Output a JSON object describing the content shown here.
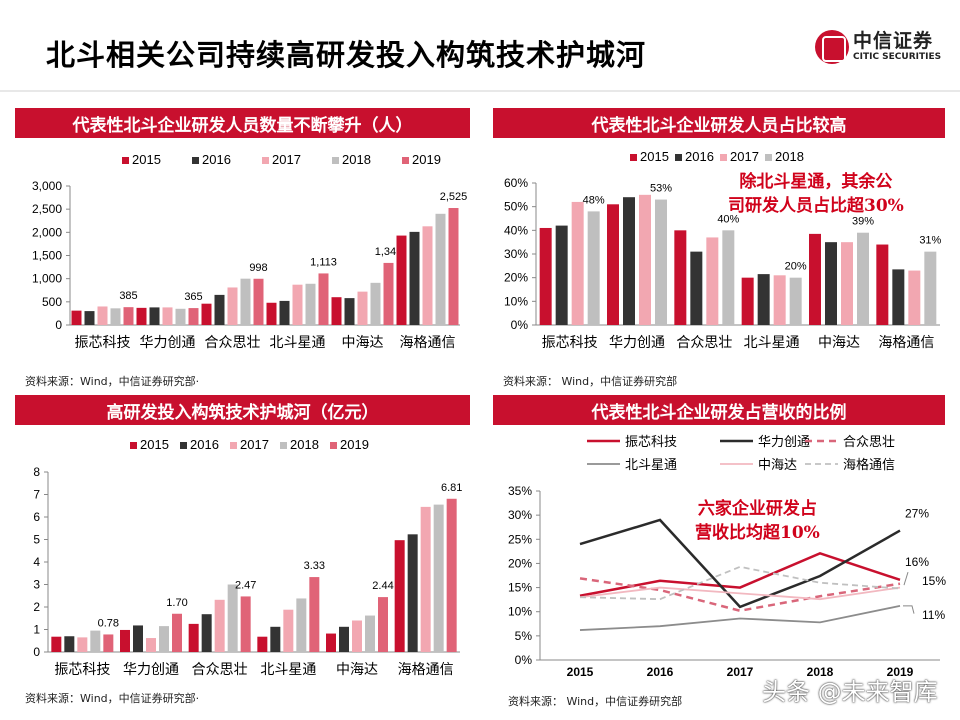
{
  "header": {
    "title": "北斗相关公司持续高研发投入构筑技术护城河",
    "logo_cn": "中信证券",
    "logo_en": "CITIC SECURITIES"
  },
  "colors": {
    "2015": "#c8102e",
    "2016": "#333333",
    "2017": "#f2a7b1",
    "2018": "#bfbfbf",
    "2019": "#e06377"
  },
  "panels": [
    {
      "title": "代表性北斗企业研发人员数量不断攀升（人）",
      "source": "资料来源：Wind，中信证券研究部·"
    },
    {
      "title": "代表性北斗企业研发人员占比较高",
      "source": "资料来源： Wind，中信证券研究部",
      "annotation_1": "除北斗星通，其余公",
      "annotation_2": "司研发人员占比超30%"
    },
    {
      "title": "高研发投入构筑技术护城河（亿元）",
      "source": "资料来源：Wind，中信证券研究部·"
    },
    {
      "title": "代表性北斗企业研发占营收的比例",
      "source": "资料来源： Wind，中信证券研究部",
      "annotation_1": "六家企业研发占",
      "annotation_2": "营收比均超10%"
    }
  ],
  "watermark": "头条 @未来智库",
  "chart_data": [
    {
      "type": "bar",
      "categories": [
        "振芯科技",
        "华力创通",
        "合众思壮",
        "北斗星通",
        "中海达",
        "海格通信"
      ],
      "ylim": [
        0,
        3000
      ],
      "yticks": [
        "0",
        "500",
        "1,000",
        "1,500",
        "2,000",
        "2,500",
        "3,000"
      ],
      "ytick_values": [
        0,
        500,
        1000,
        1500,
        2000,
        2500,
        3000
      ],
      "series": [
        {
          "name": "2015",
          "values": [
            310,
            370,
            460,
            480,
            600,
            1930
          ]
        },
        {
          "name": "2016",
          "values": [
            300,
            380,
            650,
            520,
            580,
            2010
          ]
        },
        {
          "name": "2017",
          "values": [
            400,
            380,
            810,
            870,
            720,
            2130
          ]
        },
        {
          "name": "2018",
          "values": [
            360,
            350,
            1000,
            890,
            910,
            2400
          ]
        },
        {
          "name": "2019",
          "values": [
            385,
            365,
            998,
            1113,
            1340,
            2525
          ],
          "data_labels": [
            "385",
            "365",
            "998",
            "1,113",
            "1,340",
            "2,525"
          ]
        }
      ],
      "legend": "top"
    },
    {
      "type": "bar",
      "categories": [
        "振芯科技",
        "华力创通",
        "合众思壮",
        "北斗星通",
        "中海达",
        "海格通信"
      ],
      "ylim": [
        0,
        60
      ],
      "yticks": [
        "0%",
        "10%",
        "20%",
        "30%",
        "40%",
        "50%",
        "60%"
      ],
      "ytick_values": [
        0,
        10,
        20,
        30,
        40,
        50,
        60
      ],
      "series": [
        {
          "name": "2015",
          "values": [
            41,
            51,
            40,
            20,
            38.5,
            34
          ]
        },
        {
          "name": "2016",
          "values": [
            42,
            54,
            31,
            21.5,
            35,
            23.5
          ]
        },
        {
          "name": "2017",
          "values": [
            52,
            55,
            37,
            21,
            35,
            23
          ]
        },
        {
          "name": "2018",
          "values": [
            48,
            53,
            40,
            20,
            39,
            31
          ],
          "data_labels": [
            "48%",
            "53%",
            "40%",
            "20%",
            "39%",
            "31%"
          ]
        }
      ],
      "legend": "top"
    },
    {
      "type": "bar",
      "categories": [
        "振芯科技",
        "华力创通",
        "合众思壮",
        "北斗星通",
        "中海达",
        "海格通信"
      ],
      "ylim": [
        0,
        8
      ],
      "yticks": [
        "0",
        "1",
        "2",
        "3",
        "4",
        "5",
        "6",
        "7",
        "8"
      ],
      "ytick_values": [
        0,
        1,
        2,
        3,
        4,
        5,
        6,
        7,
        8
      ],
      "series": [
        {
          "name": "2015",
          "values": [
            0.68,
            0.98,
            1.25,
            0.68,
            0.82,
            4.97
          ]
        },
        {
          "name": "2016",
          "values": [
            0.7,
            1.18,
            1.68,
            1.12,
            1.12,
            5.23
          ]
        },
        {
          "name": "2017",
          "values": [
            0.65,
            0.62,
            2.32,
            1.88,
            1.4,
            6.45
          ]
        },
        {
          "name": "2018",
          "values": [
            0.95,
            1.15,
            3.0,
            2.38,
            1.62,
            6.55
          ]
        },
        {
          "name": "2019",
          "values": [
            0.78,
            1.7,
            2.47,
            3.33,
            2.44,
            6.81
          ],
          "data_labels": [
            "0.78",
            "1.70",
            "2.47",
            "3.33",
            "2.44",
            "6.81"
          ]
        }
      ],
      "legend": "top"
    },
    {
      "type": "line",
      "x": [
        "2015",
        "2016",
        "2017",
        "2018",
        "2019"
      ],
      "ylim": [
        0,
        35
      ],
      "yticks": [
        "0%",
        "5%",
        "10%",
        "15%",
        "20%",
        "25%",
        "30%",
        "35%"
      ],
      "ytick_values": [
        0,
        5,
        10,
        15,
        20,
        25,
        30,
        35
      ],
      "series": [
        {
          "name": "振芯科技",
          "values": [
            13.3,
            16.4,
            15.0,
            22.1,
            16.6
          ],
          "color": "#c8102e",
          "style": "solid-thick"
        },
        {
          "name": "华力创通",
          "values": [
            24.0,
            29.0,
            11.0,
            17.4,
            26.8
          ],
          "color": "#2b2b2b",
          "style": "solid-thick"
        },
        {
          "name": "合众思壮",
          "values": [
            16.9,
            14.5,
            10.2,
            13.2,
            15.8
          ],
          "color": "#d9667a",
          "style": "dashed-thick"
        },
        {
          "name": "北斗星通",
          "values": [
            6.2,
            7.0,
            8.6,
            7.8,
            11.2
          ],
          "color": "#8c8c8c",
          "style": "solid-thin"
        },
        {
          "name": "中海达",
          "values": [
            13.0,
            15.0,
            13.8,
            12.6,
            15.0
          ],
          "color": "#f2b8c0",
          "style": "solid-thin"
        },
        {
          "name": "海格通信",
          "values": [
            13.0,
            12.6,
            19.3,
            16.0,
            14.8
          ],
          "color": "#c0c0c0",
          "style": "dotted"
        }
      ],
      "data_labels": [
        "27%",
        "16%",
        "15%",
        "11%"
      ],
      "legend": "top"
    }
  ]
}
